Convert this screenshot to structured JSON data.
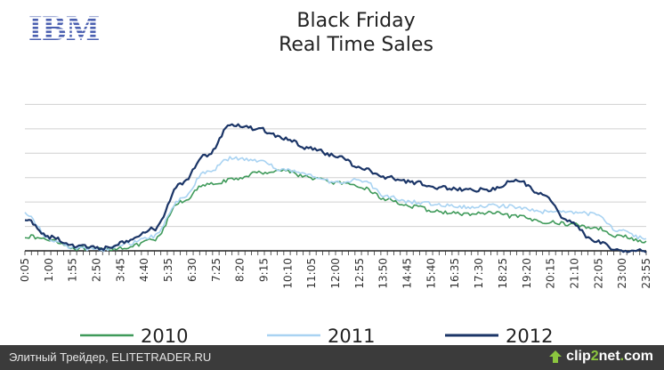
{
  "logo": {
    "text": "IBM",
    "color": "#4a5fb0"
  },
  "chart_data": {
    "type": "line",
    "title": "Black Friday",
    "subtitle": "Real Time Sales",
    "xlabel": "",
    "ylabel": "",
    "x_tick_labels": [
      "0:05",
      "1:00",
      "1:55",
      "2:50",
      "3:45",
      "4:40",
      "5:35",
      "6:30",
      "7:25",
      "8:20",
      "9:15",
      "10:10",
      "11:05",
      "12:00",
      "12:55",
      "13:50",
      "14:45",
      "15:40",
      "16:35",
      "17:30",
      "18:25",
      "19:20",
      "20:15",
      "21:10",
      "22:05",
      "23:00",
      "23:55"
    ],
    "x_hours": [
      0,
      1,
      2,
      3,
      4,
      5,
      6,
      7,
      8,
      9,
      10,
      11,
      12,
      13,
      14,
      15,
      16,
      17,
      18,
      19,
      20,
      21,
      22,
      23,
      24
    ],
    "ylim": [
      0,
      7
    ],
    "grid": true,
    "legend_position": "bottom",
    "series": [
      {
        "name": "2010",
        "color": "#3f9a5a",
        "values": [
          0.6,
          0.45,
          0.1,
          0.05,
          0.15,
          0.45,
          2.0,
          2.7,
          2.9,
          3.2,
          3.3,
          3.0,
          2.8,
          2.6,
          2.1,
          1.8,
          1.6,
          1.5,
          1.55,
          1.4,
          1.2,
          1.1,
          0.95,
          0.6,
          0.35
        ]
      },
      {
        "name": "2011",
        "color": "#a9d3f2",
        "values": [
          1.55,
          0.45,
          0.1,
          0.05,
          0.3,
          0.6,
          2.1,
          3.2,
          3.8,
          3.7,
          3.3,
          3.1,
          2.8,
          2.9,
          2.2,
          2.0,
          1.9,
          1.8,
          1.85,
          1.8,
          1.6,
          1.6,
          1.5,
          0.8,
          0.5
        ]
      },
      {
        "name": "2012",
        "color": "#1b3567",
        "values": [
          1.3,
          0.55,
          0.2,
          0.1,
          0.4,
          0.9,
          2.7,
          3.9,
          5.2,
          5.0,
          4.6,
          4.2,
          3.9,
          3.4,
          3.0,
          2.8,
          2.6,
          2.5,
          2.5,
          2.9,
          2.3,
          1.2,
          0.4,
          0.0,
          0.0
        ]
      }
    ]
  },
  "footer": {
    "left_text": "Элитный Трейдер, ELITETRADER.RU",
    "brand_pre": "clip",
    "brand_num": "2",
    "brand_post": "net",
    "brand_dot": ".",
    "brand_tld": "com"
  }
}
